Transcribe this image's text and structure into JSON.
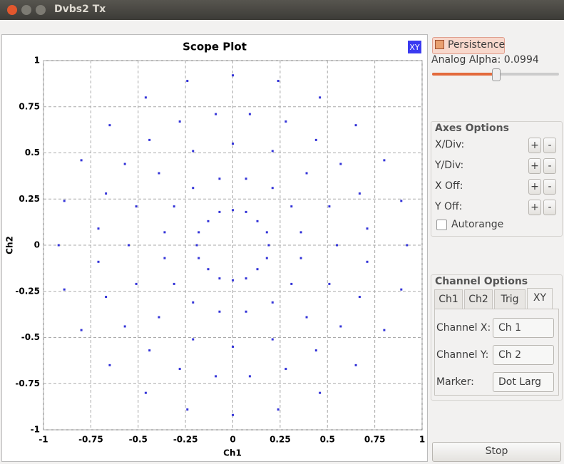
{
  "window": {
    "title": "Dvbs2 Tx"
  },
  "chart_data": {
    "type": "scatter",
    "title": "Scope Plot",
    "x_label": "Ch1",
    "y_label": "Ch2",
    "mode_button": "XY",
    "xlim": [
      -1,
      1
    ],
    "ylim": [
      -1,
      1
    ],
    "xticks": [
      -1,
      -0.75,
      -0.5,
      -0.25,
      0,
      0.25,
      0.5,
      0.75,
      1
    ],
    "yticks": [
      -1,
      -0.75,
      -0.5,
      -0.25,
      0,
      0.25,
      0.5,
      0.75,
      1
    ],
    "grid": true,
    "series": [
      {
        "color": "#3434d8",
        "x": [
          0.19,
          0.18,
          0.13,
          0.07,
          0,
          -0.07,
          -0.13,
          -0.18,
          -0.19,
          -0.18,
          -0.13,
          -0.07,
          0,
          0.07,
          0.13,
          0.18,
          0.36,
          0.31,
          0.21,
          0.07,
          -0.07,
          -0.21,
          -0.31,
          -0.36,
          -0.36,
          -0.31,
          -0.21,
          -0.07,
          0.07,
          0.21,
          0.31,
          0.36,
          0.55,
          0.51,
          0.39,
          0.21,
          0,
          -0.21,
          -0.39,
          -0.51,
          -0.55,
          -0.51,
          -0.39,
          -0.21,
          0,
          0.21,
          0.39,
          0.51,
          0.71,
          0.67,
          0.57,
          0.44,
          0.28,
          0.09,
          -0.09,
          -0.28,
          -0.44,
          -0.57,
          -0.67,
          -0.71,
          -0.71,
          -0.67,
          -0.57,
          -0.44,
          -0.28,
          -0.09,
          0.09,
          0.28,
          0.44,
          0.57,
          0.67,
          0.71,
          0.92,
          0.89,
          0.8,
          0.65,
          0.46,
          0.24,
          0,
          -0.24,
          -0.46,
          -0.65,
          -0.8,
          -0.89,
          -0.92,
          -0.89,
          -0.8,
          -0.65,
          -0.46,
          -0.24,
          0,
          0.24,
          0.46,
          0.65,
          0.8,
          0.89
        ],
        "y": [
          0,
          0.07,
          0.13,
          0.18,
          0.19,
          0.18,
          0.13,
          0.07,
          0,
          -0.07,
          -0.13,
          -0.18,
          -0.19,
          -0.18,
          -0.13,
          -0.07,
          0.07,
          0.21,
          0.31,
          0.36,
          0.36,
          0.31,
          0.21,
          0.07,
          -0.07,
          -0.21,
          -0.31,
          -0.36,
          -0.36,
          -0.31,
          -0.21,
          -0.07,
          0,
          0.21,
          0.39,
          0.51,
          0.55,
          0.51,
          0.39,
          0.21,
          0,
          -0.21,
          -0.39,
          -0.51,
          -0.55,
          -0.51,
          -0.39,
          -0.21,
          0.09,
          0.28,
          0.44,
          0.57,
          0.67,
          0.71,
          0.71,
          0.67,
          0.57,
          0.44,
          0.28,
          0.09,
          -0.09,
          -0.28,
          -0.44,
          -0.57,
          -0.67,
          -0.71,
          -0.71,
          -0.67,
          -0.57,
          -0.44,
          -0.28,
          -0.09,
          0,
          0.24,
          0.46,
          0.65,
          0.8,
          0.89,
          0.92,
          0.89,
          0.8,
          0.65,
          0.46,
          0.24,
          0,
          -0.24,
          -0.46,
          -0.65,
          -0.8,
          -0.89,
          -0.92,
          -0.89,
          -0.8,
          -0.65,
          -0.46,
          -0.24
        ]
      }
    ]
  },
  "panel": {
    "persistence": "Persistence",
    "alpha_label": "Analog Alpha:",
    "alpha": 0.0994,
    "axes_title": "Axes Options",
    "axes_rows": [
      "X/Div:",
      "Y/Div:",
      "X Off:",
      "Y Off:"
    ],
    "plus": "+",
    "minus": "-",
    "autorange": "Autorange",
    "channel_title": "Channel Options",
    "tabs": [
      "Ch1",
      "Ch2",
      "Trig",
      "XY"
    ],
    "channel_rows": [
      {
        "label": "Channel X:",
        "value": "Ch 1"
      },
      {
        "label": "Channel Y:",
        "value": "Ch 2"
      },
      {
        "label": "Marker:",
        "value": "Dot Larg"
      }
    ],
    "stop": "Stop"
  }
}
